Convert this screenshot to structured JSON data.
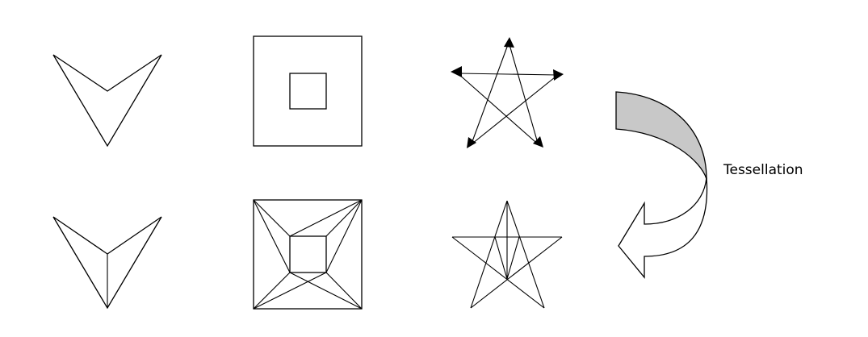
{
  "labels": {
    "tessellation": "Tessellation"
  },
  "rows": [
    {
      "name": "original-polygons",
      "shapes": [
        "chevron",
        "square-with-hole",
        "directed-pentagram"
      ]
    },
    {
      "name": "tessellated-polygons",
      "shapes": [
        "chevron-split",
        "square-with-hole-triangulated",
        "pentagram-triangulated"
      ]
    }
  ],
  "transform_arrow": {
    "icon": "curved-arrow-icon",
    "fill": "#c8c8c8"
  }
}
